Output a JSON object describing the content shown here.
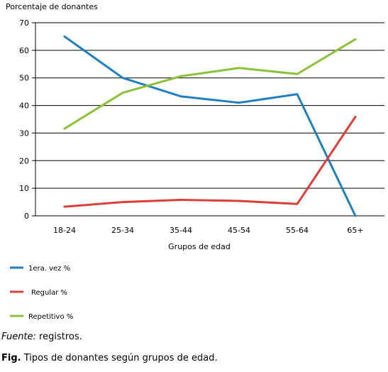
{
  "chart_data": {
    "type": "line",
    "ylabel": "Porcentaje de donantes",
    "xlabel": "Grupos de edad",
    "categories": [
      "18-24",
      "25-34",
      "35-44",
      "45-54",
      "55-64",
      "65+"
    ],
    "ylim": [
      0,
      70
    ],
    "yticks": [
      0,
      10,
      20,
      30,
      40,
      50,
      60,
      70
    ],
    "grid": true,
    "legend_position": "bottom-left",
    "series": [
      {
        "name": "1era. vez %",
        "color": "#1f7fc1",
        "values": [
          65,
          50,
          43.3,
          41,
          44.1,
          0
        ]
      },
      {
        "name": "Regular %",
        "color": "#d9403a",
        "values": [
          3.3,
          5,
          5.8,
          5.4,
          4.3,
          35.9
        ]
      },
      {
        "name": "Repetitivo %",
        "color": "#8cc13a",
        "values": [
          31.6,
          44.6,
          50.6,
          53.6,
          51.4,
          64
        ]
      }
    ]
  },
  "caption": {
    "source_label": "Fuente:",
    "source_text": " registros.",
    "fig_label": "Fig.",
    "fig_text": " Tipos de donantes según grupos de edad."
  }
}
